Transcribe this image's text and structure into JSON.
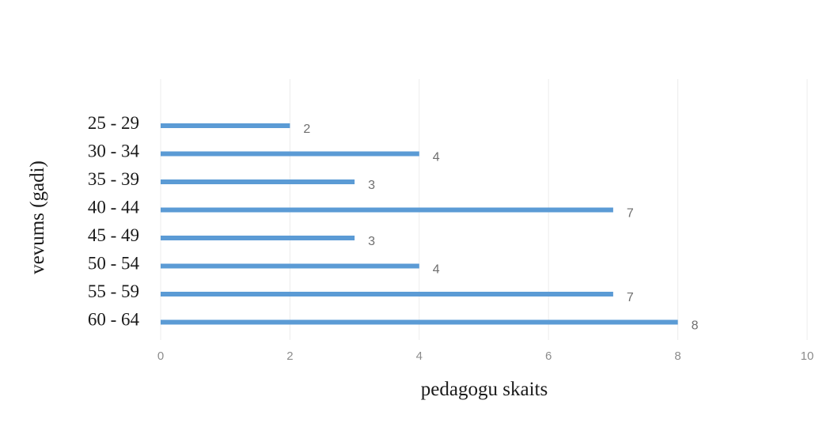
{
  "chart_data": {
    "type": "bar",
    "orientation": "horizontal",
    "title": "",
    "xlabel": "pedagogu skaits",
    "ylabel": "vevums (gadi)",
    "categories": [
      "25 - 29",
      "30 - 34",
      "35 - 39",
      "40 - 44",
      "45 - 49",
      "50 - 54",
      "55 - 59",
      "60 - 64"
    ],
    "values": [
      2,
      4,
      3,
      7,
      3,
      4,
      7,
      8
    ],
    "xlim": [
      0,
      10
    ],
    "xticks": [
      0,
      2,
      4,
      6,
      8,
      10
    ],
    "data_labels": [
      "2",
      "4",
      "3",
      "7",
      "3",
      "4",
      "7",
      "8"
    ],
    "grid": true,
    "legend": "none",
    "bar_color": "#5b9bd5"
  }
}
